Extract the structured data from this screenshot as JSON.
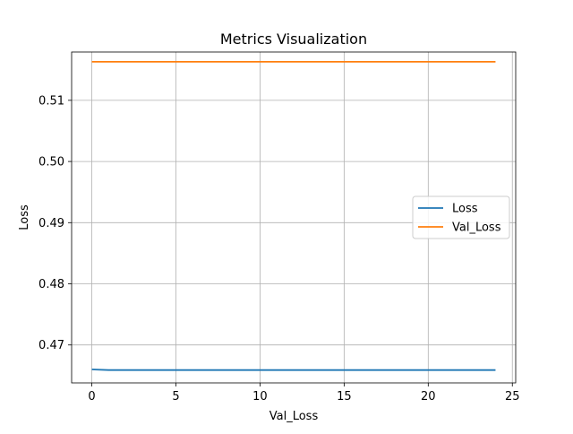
{
  "chart_data": {
    "type": "line",
    "title": "Metrics Visualization",
    "xlabel": "Val_Loss",
    "ylabel": "Loss",
    "xlim": [
      -1.2,
      25.2
    ],
    "ylim": [
      0.4638,
      0.5179
    ],
    "xticks": [
      0,
      5,
      10,
      15,
      20,
      25
    ],
    "xtick_labels": [
      "0",
      "5",
      "10",
      "15",
      "20",
      "25"
    ],
    "yticks": [
      0.47,
      0.48,
      0.49,
      0.5,
      0.51
    ],
    "ytick_labels": [
      "0.47",
      "0.48",
      "0.49",
      "0.50",
      "0.51"
    ],
    "grid": true,
    "legend_position": "center-right",
    "x": [
      0,
      1,
      2,
      3,
      4,
      5,
      6,
      7,
      8,
      9,
      10,
      11,
      12,
      13,
      14,
      15,
      16,
      17,
      18,
      19,
      20,
      21,
      22,
      23,
      24
    ],
    "series": [
      {
        "name": "Loss",
        "color": "#1f77b4",
        "values": [
          0.466,
          0.4659,
          0.4659,
          0.4659,
          0.4659,
          0.4659,
          0.4659,
          0.4659,
          0.4659,
          0.4659,
          0.4659,
          0.4659,
          0.4659,
          0.4659,
          0.4659,
          0.4659,
          0.4659,
          0.4659,
          0.4659,
          0.4659,
          0.4659,
          0.4659,
          0.4659,
          0.4659,
          0.4659
        ]
      },
      {
        "name": "Val_Loss",
        "color": "#ff7f0e",
        "values": [
          0.5163,
          0.5163,
          0.5163,
          0.5163,
          0.5163,
          0.5163,
          0.5163,
          0.5163,
          0.5163,
          0.5163,
          0.5163,
          0.5163,
          0.5163,
          0.5163,
          0.5163,
          0.5163,
          0.5163,
          0.5163,
          0.5163,
          0.5163,
          0.5163,
          0.5163,
          0.5163,
          0.5163,
          0.5163
        ]
      }
    ]
  }
}
